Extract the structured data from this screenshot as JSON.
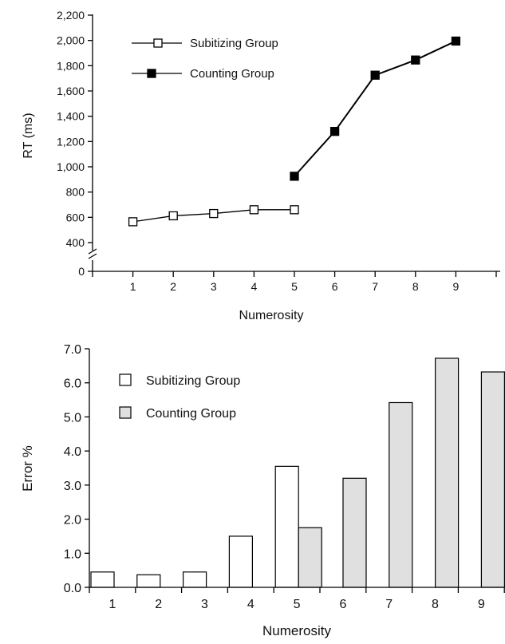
{
  "chart_data": [
    {
      "type": "line",
      "xlabel": "Numerosity",
      "ylabel": "RT (ms)",
      "x_ticks": [
        "1",
        "2",
        "3",
        "4",
        "5",
        "6",
        "7",
        "8",
        "9"
      ],
      "y_ticks": [
        "0",
        "400",
        "600",
        "800",
        "1,000",
        "1,200",
        "1,400",
        "1,600",
        "1,800",
        "2,000",
        "2,200"
      ],
      "y_axis_break": "between 0 and 400",
      "legend_position": "top-left",
      "series": [
        {
          "name": "Subitizing Group",
          "marker": "open-square",
          "x": [
            1,
            2,
            3,
            4,
            5
          ],
          "y": [
            565,
            612,
            630,
            660,
            660
          ]
        },
        {
          "name": "Counting Group",
          "marker": "filled-square",
          "x": [
            5,
            6,
            7,
            8,
            9
          ],
          "y": [
            925,
            1280,
            1725,
            1845,
            1995
          ]
        }
      ]
    },
    {
      "type": "bar",
      "xlabel": "Numerosity",
      "ylabel": "Error %",
      "categories": [
        "1",
        "2",
        "3",
        "4",
        "5",
        "6",
        "7",
        "8",
        "9"
      ],
      "y_ticks": [
        "0.0",
        "1.0",
        "2.0",
        "3.0",
        "4.0",
        "5.0",
        "6.0",
        "7.0"
      ],
      "ylim": [
        0,
        7
      ],
      "legend_position": "top-left",
      "series": [
        {
          "name": "Subitizing Group",
          "color": "#ffffff",
          "values": [
            0.45,
            0.37,
            0.45,
            1.5,
            3.55,
            null,
            null,
            null,
            null
          ]
        },
        {
          "name": "Counting Group",
          "color": "#e0e0e0",
          "values": [
            null,
            null,
            null,
            null,
            1.75,
            3.2,
            5.42,
            6.72,
            6.32
          ]
        }
      ]
    }
  ]
}
